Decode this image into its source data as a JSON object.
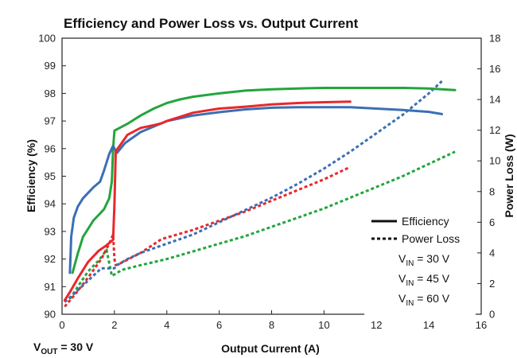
{
  "chart_data": {
    "type": "line",
    "title": "Efficiency and Power Loss vs. Output Current",
    "xlabel": "Output Current (A)",
    "ylabel": "Efficiency (%)",
    "y2label": "Power Loss (W)",
    "xlim": [
      0,
      16
    ],
    "ylim": [
      90,
      100
    ],
    "y2lim": [
      0,
      18
    ],
    "xticks": [
      "0",
      "2",
      "4",
      "6",
      "8",
      "10",
      "12",
      "14",
      "16"
    ],
    "yticks": [
      "90",
      "91",
      "92",
      "93",
      "94",
      "95",
      "96",
      "97",
      "98",
      "99",
      "100"
    ],
    "y2ticks": [
      "0",
      "2",
      "4",
      "6",
      "8",
      "10",
      "12",
      "14",
      "16",
      "18"
    ],
    "grid": false,
    "legend_position": "bottom-right",
    "legend": {
      "efficiency_label": "Efficiency",
      "power_loss_label": "Power Loss",
      "vin_entries": [
        {
          "prefix": "V",
          "sub": "IN",
          "suffix": " = 30 V",
          "color": "#3a6fb5"
        },
        {
          "prefix": "V",
          "sub": "IN",
          "suffix": " = 45 V",
          "color": "#23a53d"
        },
        {
          "prefix": "V",
          "sub": "IN",
          "suffix": " = 60 V",
          "color": "#e8282c"
        }
      ]
    },
    "annotation": {
      "prefix": "V",
      "sub": "OUT",
      "suffix": " = 30 V"
    },
    "series": [
      {
        "vin": "30 V",
        "color": "#3a6fb5",
        "kind": "efficiency",
        "axis": "left",
        "x": [
          0.3,
          0.35,
          0.45,
          0.6,
          0.8,
          1.0,
          1.2,
          1.45,
          1.6,
          1.8,
          1.95,
          2.0,
          2.1,
          2.4,
          3.0,
          4.0,
          5.0,
          6.0,
          7.0,
          8.0,
          9.0,
          10.0,
          11.0,
          12.0,
          13.0,
          14.0,
          14.5
        ],
        "y": [
          91.5,
          92.8,
          93.5,
          93.9,
          94.2,
          94.4,
          94.6,
          94.8,
          95.2,
          95.8,
          96.1,
          96.0,
          95.85,
          96.2,
          96.6,
          97.0,
          97.2,
          97.32,
          97.42,
          97.48,
          97.5,
          97.5,
          97.5,
          97.45,
          97.4,
          97.33,
          97.25
        ]
      },
      {
        "vin": "45 V",
        "color": "#23a53d",
        "kind": "efficiency",
        "axis": "left",
        "x": [
          0.4,
          0.6,
          0.8,
          1.0,
          1.2,
          1.4,
          1.6,
          1.8,
          1.9,
          1.95,
          2.0,
          2.5,
          3.0,
          3.5,
          4.0,
          4.5,
          5.0,
          6.0,
          7.0,
          8.0,
          9.0,
          10.0,
          11.0,
          12.0,
          13.0,
          14.0,
          15.0
        ],
        "y": [
          91.5,
          92.2,
          92.8,
          93.1,
          93.4,
          93.6,
          93.8,
          94.2,
          94.8,
          96.0,
          96.65,
          96.9,
          97.2,
          97.45,
          97.65,
          97.78,
          97.88,
          98.0,
          98.1,
          98.15,
          98.18,
          98.2,
          98.2,
          98.2,
          98.2,
          98.18,
          98.12
        ]
      },
      {
        "vin": "60 V",
        "color": "#e8282c",
        "kind": "efficiency",
        "axis": "left",
        "x": [
          0.1,
          0.3,
          0.6,
          1.0,
          1.4,
          1.7,
          1.95,
          2.0,
          2.05,
          2.2,
          2.5,
          3.0,
          3.5,
          3.8,
          4.0,
          4.5,
          5.0,
          6.0,
          7.0,
          8.0,
          9.0,
          10.0,
          11.0
        ],
        "y": [
          90.5,
          90.8,
          91.3,
          91.9,
          92.3,
          92.5,
          92.7,
          94.0,
          95.9,
          96.1,
          96.5,
          96.75,
          96.85,
          96.92,
          97.0,
          97.15,
          97.3,
          97.45,
          97.52,
          97.6,
          97.65,
          97.68,
          97.7
        ]
      },
      {
        "vin": "30 V",
        "color": "#3a6fb5",
        "kind": "power_loss",
        "axis": "right",
        "x": [
          0.1,
          0.5,
          1.0,
          1.5,
          1.75,
          2.0,
          2.1,
          2.5,
          3.0,
          4.0,
          5.0,
          6.0,
          7.0,
          8.0,
          9.0,
          10.0,
          11.0,
          12.0,
          13.0,
          14.0,
          14.5
        ],
        "y": [
          0.8,
          1.4,
          2.2,
          3.0,
          3.0,
          3.0,
          3.2,
          3.6,
          4.0,
          4.6,
          5.2,
          6.0,
          6.8,
          7.6,
          8.5,
          9.5,
          10.6,
          11.8,
          13.0,
          14.4,
          15.2
        ]
      },
      {
        "vin": "45 V",
        "color": "#23a53d",
        "kind": "power_loss",
        "axis": "right",
        "x": [
          0.3,
          0.6,
          1.0,
          1.4,
          1.7,
          1.9,
          2.0,
          2.3,
          3.0,
          4.0,
          5.0,
          6.0,
          7.0,
          8.0,
          9.0,
          10.0,
          11.0,
          12.0,
          13.0,
          14.0,
          15.0
        ],
        "y": [
          1.0,
          1.8,
          2.8,
          3.5,
          4.2,
          2.5,
          2.6,
          2.9,
          3.2,
          3.6,
          4.1,
          4.6,
          5.1,
          5.7,
          6.3,
          6.9,
          7.6,
          8.3,
          9.0,
          9.8,
          10.6
        ]
      },
      {
        "vin": "60 V",
        "color": "#e8282c",
        "kind": "power_loss",
        "axis": "right",
        "x": [
          0.1,
          0.5,
          1.0,
          1.5,
          1.8,
          1.95,
          2.0,
          2.05,
          2.2,
          3.0,
          3.8,
          4.0,
          5.0,
          6.0,
          7.0,
          8.0,
          9.0,
          10.0,
          11.0
        ],
        "y": [
          0.5,
          1.3,
          2.4,
          3.6,
          4.6,
          5.2,
          3.6,
          3.2,
          3.3,
          4.0,
          4.9,
          5.0,
          5.5,
          6.1,
          6.7,
          7.4,
          8.1,
          8.8,
          9.6
        ]
      }
    ]
  }
}
